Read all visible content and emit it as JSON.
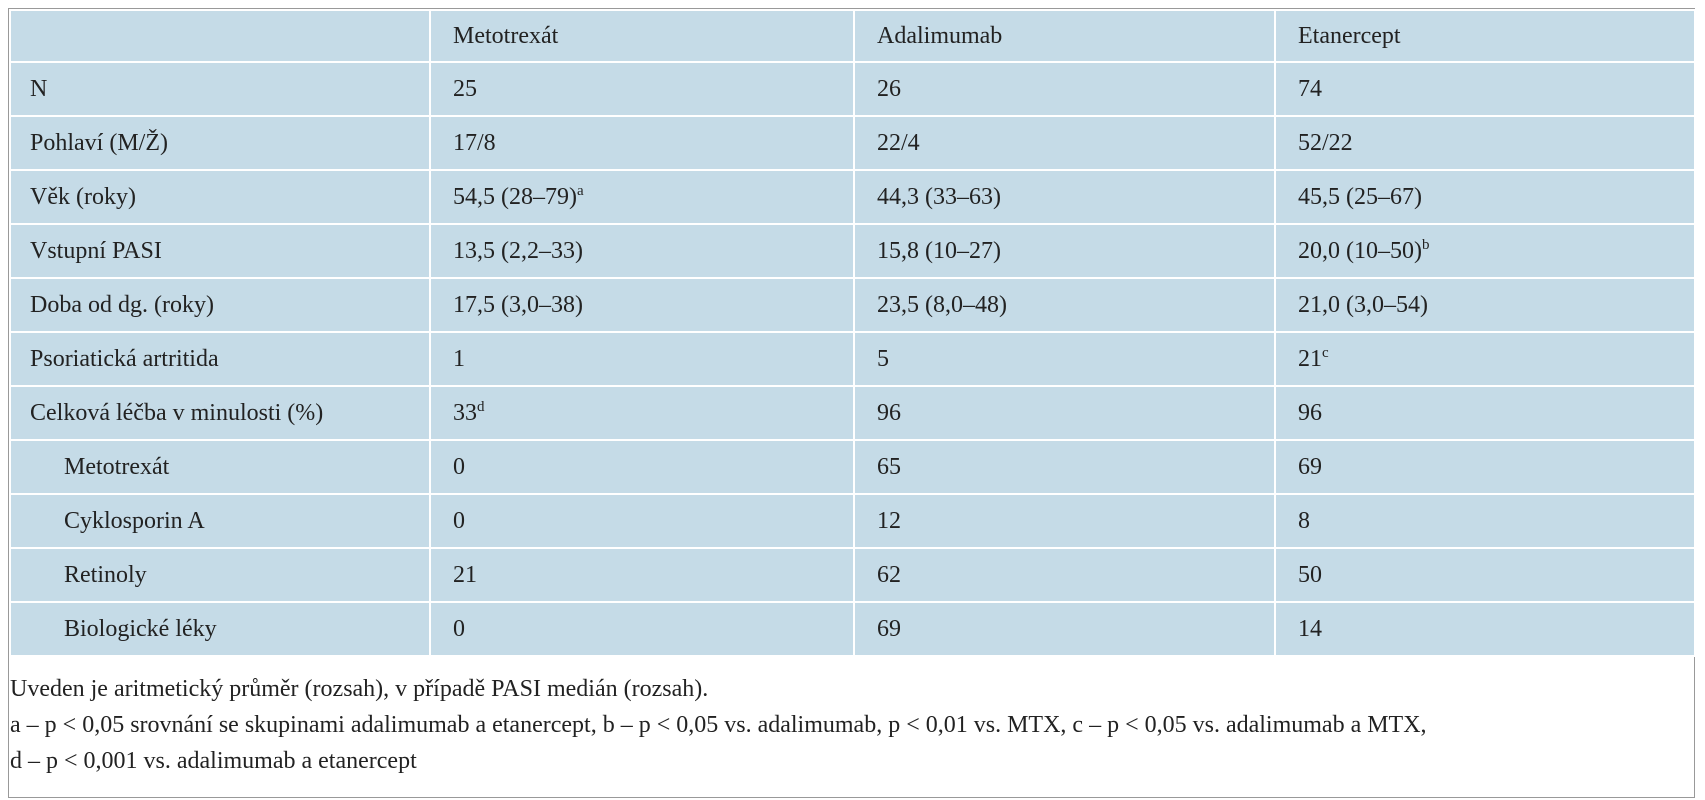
{
  "table": {
    "header": [
      "",
      "Metotrexát",
      "Adalimumab",
      "Etanercept"
    ],
    "rows": [
      [
        "N",
        "25",
        "26",
        "74"
      ],
      [
        "Pohlaví (M/Ž)",
        "17/8",
        "22/4",
        "52/22"
      ],
      [
        "Věk (roky)",
        {
          "text": "54,5 (28–79)",
          "sup": "a"
        },
        "44,3 (33–63)",
        "45,5 (25–67)"
      ],
      [
        "Vstupní PASI",
        "13,5 (2,2–33)",
        "15,8 (10–27)",
        {
          "text": "20,0 (10–50)",
          "sup": "b"
        }
      ],
      [
        "Doba od dg. (roky)",
        "17,5 (3,0–38)",
        "23,5 (8,0–48)",
        "21,0 (3,0–54)"
      ],
      [
        "Psoriatická artritida",
        "1",
        "5",
        {
          "text": "21",
          "sup": "c"
        }
      ],
      [
        "Celková léčba v minulosti (%)",
        {
          "text": "33",
          "sup": "d"
        },
        "96",
        "96"
      ],
      [
        "Metotrexát",
        "0",
        "65",
        "69"
      ],
      [
        "Cyklosporin A",
        "0",
        "12",
        "8"
      ],
      [
        "Retinoly",
        "21",
        "62",
        "50"
      ],
      [
        "Biologické léky",
        "0",
        "69",
        "14"
      ]
    ]
  },
  "notes": [
    "Uveden je aritmetický průměr (rozsah), v případě PASI medián (rozsah).",
    "a – p < 0,05 srovnání se skupinami adalimumab a etanercept, b – p < 0,05 vs. adalimumab, p < 0,01 vs. MTX, c – p < 0,05 vs. adalimumab a MTX,",
    "d – p < 0,001 vs. adalimumab a etanercept"
  ]
}
